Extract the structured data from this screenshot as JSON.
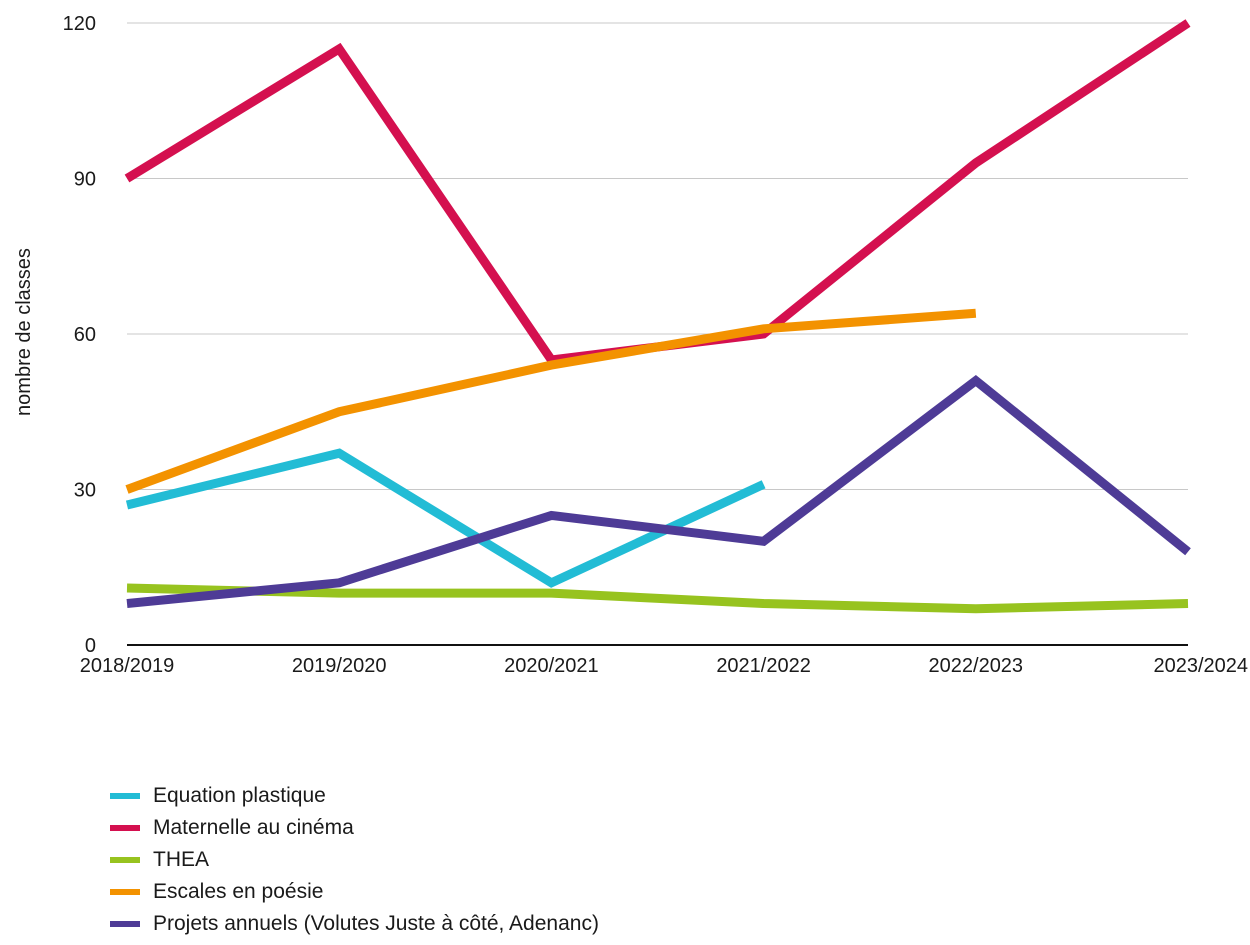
{
  "chart_data": {
    "type": "line",
    "title": "",
    "xlabel": "",
    "ylabel": "nombre de classes",
    "categories": [
      "2018/2019",
      "2019/2020",
      "2020/2021",
      "2021/2022",
      "2022/2023",
      "2023/2024"
    ],
    "ylim": [
      0,
      120
    ],
    "yticks": [
      0,
      30,
      60,
      90,
      120
    ],
    "grid": true,
    "legend_position": "bottom",
    "series": [
      {
        "name": "Equation plastique",
        "color": "#22bcd5",
        "values": [
          27,
          37,
          12,
          31,
          null,
          null
        ]
      },
      {
        "name": "Maternelle au cinéma",
        "color": "#d4104f",
        "values": [
          90,
          115,
          55,
          60,
          93,
          120
        ]
      },
      {
        "name": "THEA",
        "color": "#97c31f",
        "values": [
          11,
          10,
          10,
          8,
          7,
          8
        ]
      },
      {
        "name": "Escales en poésie",
        "color": "#f39200",
        "values": [
          30,
          45,
          54,
          61,
          64,
          null
        ]
      },
      {
        "name": "Projets annuels (Volutes Juste à côté, Adenanc)",
        "color": "#4e3b96",
        "values": [
          8,
          12,
          25,
          20,
          51,
          18
        ]
      }
    ]
  }
}
